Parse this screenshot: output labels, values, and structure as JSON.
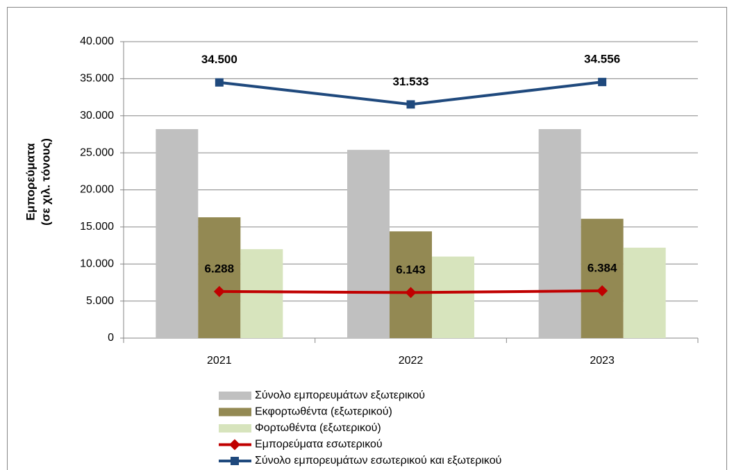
{
  "chart_data": {
    "type": "bar",
    "categories": [
      "2021",
      "2022",
      "2023"
    ],
    "ylabel": [
      "Εμπορεύματα",
      "(σε χιλ. τόνους)"
    ],
    "ylim": [
      0,
      40000
    ],
    "yticks": [
      0,
      {
        "value": 5000,
        "label": "5.000"
      },
      {
        "value": 10000,
        "label": "10.000"
      },
      {
        "value": 15000,
        "label": "15.000"
      },
      {
        "value": 20000,
        "label": "20.000"
      },
      {
        "value": 25000,
        "label": "25.000"
      },
      {
        "value": 30000,
        "label": "30.000"
      },
      {
        "value": 35000,
        "label": "35.000"
      },
      {
        "value": 40000,
        "label": "40.000"
      }
    ],
    "grid": true,
    "series": [
      {
        "name": "Σύνολο εμπορευμάτων εξωτερικού",
        "type": "bar",
        "color": "#c0c0c0",
        "values": [
          28200,
          25400,
          28200
        ]
      },
      {
        "name": "Εκφορτωθέντα (εξωτερικού)",
        "type": "bar",
        "color": "#938953",
        "values": [
          16300,
          14400,
          16100
        ]
      },
      {
        "name": "Φορτωθέντα (εξωτερικού)",
        "type": "bar",
        "color": "#d7e4bd",
        "values": [
          12000,
          11000,
          12200
        ]
      },
      {
        "name": "Εμπορεύματα εσωτερικού",
        "type": "line",
        "marker": "diamond",
        "color": "#c00000",
        "values": [
          6288,
          6143,
          6384
        ],
        "value_labels": [
          "6.288",
          "6.143",
          "6.384"
        ]
      },
      {
        "name": "Σύνολο εμπορευμάτων εσωτερικού και εξωτερικού",
        "type": "line",
        "marker": "square",
        "color": "#1f497d",
        "values": [
          34500,
          31533,
          34556
        ],
        "value_labels": [
          "34.500",
          "31.533",
          "34.556"
        ]
      }
    ]
  }
}
